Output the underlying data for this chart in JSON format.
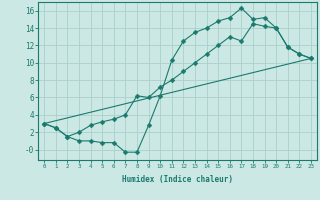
{
  "xlabel": "Humidex (Indice chaleur)",
  "bg_color": "#cce8e4",
  "grid_color": "#aacfcc",
  "line_color": "#1a7a6e",
  "xlim": [
    -0.5,
    23.5
  ],
  "ylim": [
    -1.2,
    17.0
  ],
  "xticks": [
    0,
    1,
    2,
    3,
    4,
    5,
    6,
    7,
    8,
    9,
    10,
    11,
    12,
    13,
    14,
    15,
    16,
    17,
    18,
    19,
    20,
    21,
    22,
    23
  ],
  "yticks": [
    0,
    2,
    4,
    6,
    8,
    10,
    12,
    14,
    16
  ],
  "ytick_labels": [
    "-0",
    "2",
    "4",
    "6",
    "8",
    "10",
    "12",
    "14",
    "16"
  ],
  "line1_x": [
    0,
    1,
    2,
    3,
    4,
    5,
    6,
    7,
    8,
    9,
    10,
    11,
    12,
    13,
    14,
    15,
    16,
    17,
    18,
    19,
    20,
    21,
    22,
    23
  ],
  "line1_y": [
    3.0,
    2.5,
    1.5,
    1.0,
    1.0,
    0.8,
    0.8,
    -0.3,
    -0.3,
    2.8,
    6.2,
    10.3,
    12.5,
    13.5,
    14.0,
    14.8,
    15.2,
    16.3,
    15.0,
    15.2,
    14.0,
    11.8,
    11.0,
    10.5
  ],
  "line2_x": [
    0,
    1,
    2,
    3,
    4,
    5,
    6,
    7,
    8,
    9,
    10,
    11,
    12,
    13,
    14,
    15,
    16,
    17,
    18,
    19,
    20,
    21,
    22,
    23
  ],
  "line2_y": [
    3.0,
    2.5,
    1.5,
    2.0,
    2.8,
    3.2,
    3.5,
    4.0,
    6.2,
    6.0,
    7.2,
    8.0,
    9.0,
    10.0,
    11.0,
    12.0,
    13.0,
    12.5,
    14.5,
    14.2,
    14.0,
    11.8,
    11.0,
    10.5
  ],
  "line3_x": [
    0,
    23
  ],
  "line3_y": [
    3.0,
    10.5
  ],
  "marker": "D",
  "markersize": 2.5
}
